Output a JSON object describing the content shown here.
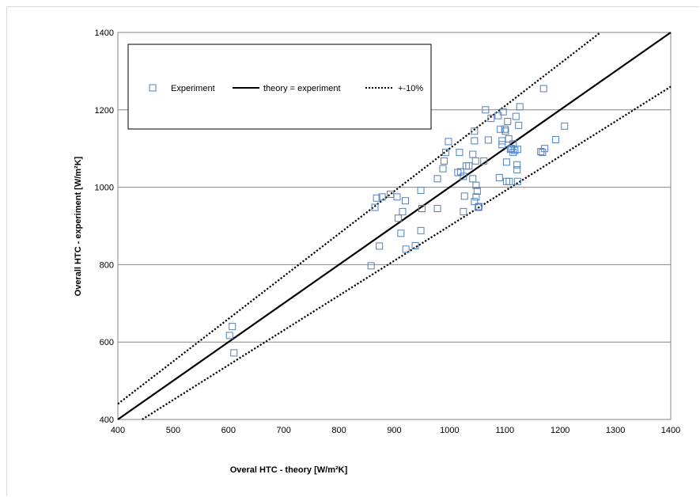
{
  "chart_data": {
    "type": "scatter",
    "title": "",
    "xlabel": "Overal HTC - theory [W/m²K]",
    "ylabel": "Overall HTC - experiment [W/m²K]",
    "xlim": [
      400,
      1400
    ],
    "ylim": [
      400,
      1400
    ],
    "xticks": [
      "400",
      "500",
      "600",
      "700",
      "800",
      "900",
      "1000",
      "1100",
      "1200",
      "1300",
      "1400"
    ],
    "yticks": [
      "400",
      "600",
      "800",
      "1000",
      "1200",
      "1400"
    ],
    "grid": "horizontal",
    "legend_position": "top-left",
    "series": [
      {
        "name": "Experiment",
        "kind": "markers",
        "marker": "open-square",
        "color": "#4f81bd",
        "points": [
          [
            602,
            617
          ],
          [
            607,
            640
          ],
          [
            610,
            572
          ],
          [
            858,
            797
          ],
          [
            865,
            948
          ],
          [
            868,
            972
          ],
          [
            873,
            848
          ],
          [
            878,
            975
          ],
          [
            893,
            982
          ],
          [
            905,
            975
          ],
          [
            907,
            920
          ],
          [
            912,
            881
          ],
          [
            915,
            937
          ],
          [
            920,
            965
          ],
          [
            921,
            840
          ],
          [
            938,
            849
          ],
          [
            948,
            992
          ],
          [
            948,
            888
          ],
          [
            950,
            945
          ],
          [
            978,
            945
          ],
          [
            978,
            1022
          ],
          [
            988,
            1048
          ],
          [
            990,
            1068
          ],
          [
            993,
            1090
          ],
          [
            998,
            1118
          ],
          [
            1015,
            1038
          ],
          [
            1018,
            1090
          ],
          [
            1020,
            1040
          ],
          [
            1025,
            1028
          ],
          [
            1025,
            937
          ],
          [
            1027,
            977
          ],
          [
            1030,
            1055
          ],
          [
            1035,
            1055
          ],
          [
            1042,
            1085
          ],
          [
            1042,
            1022
          ],
          [
            1045,
            1145
          ],
          [
            1045,
            1120
          ],
          [
            1045,
            963
          ],
          [
            1047,
            1068
          ],
          [
            1048,
            1005
          ],
          [
            1048,
            975
          ],
          [
            1050,
            990
          ],
          [
            1052,
            948
          ],
          [
            1053,
            950
          ],
          [
            1062,
            1068
          ],
          [
            1065,
            1200
          ],
          [
            1070,
            1122
          ],
          [
            1075,
            1178
          ],
          [
            1088,
            1185
          ],
          [
            1090,
            1025
          ],
          [
            1092,
            1150
          ],
          [
            1095,
            1120
          ],
          [
            1095,
            1110
          ],
          [
            1097,
            1195
          ],
          [
            1100,
            1150
          ],
          [
            1101,
            1145
          ],
          [
            1103,
            1065
          ],
          [
            1103,
            1015
          ],
          [
            1105,
            1170
          ],
          [
            1107,
            1125
          ],
          [
            1108,
            1015
          ],
          [
            1110,
            1098
          ],
          [
            1112,
            1100
          ],
          [
            1115,
            1112
          ],
          [
            1115,
            1090
          ],
          [
            1118,
            1095
          ],
          [
            1120,
            1183
          ],
          [
            1122,
            1058
          ],
          [
            1122,
            1045
          ],
          [
            1123,
            1098
          ],
          [
            1123,
            1015
          ],
          [
            1125,
            1160
          ],
          [
            1127,
            1208
          ],
          [
            1165,
            1092
          ],
          [
            1168,
            1090
          ],
          [
            1170,
            1255
          ],
          [
            1172,
            1100
          ],
          [
            1192,
            1123
          ],
          [
            1208,
            1158
          ]
        ]
      },
      {
        "name": "theory = experiment",
        "kind": "line",
        "style": "solid",
        "color": "#000000",
        "points": [
          [
            400,
            400
          ],
          [
            1400,
            1400
          ]
        ]
      },
      {
        "name": "+-10%",
        "kind": "line",
        "style": "dotted",
        "color": "#000000",
        "points": [
          [
            400,
            440
          ],
          [
            1273,
            1400
          ]
        ]
      },
      {
        "name": "+-10%",
        "kind": "line",
        "style": "dotted",
        "color": "#000000",
        "points": [
          [
            444,
            400
          ],
          [
            1400,
            1260
          ]
        ]
      }
    ],
    "legend": [
      "Experiment",
      "theory = experiment",
      "+-10%"
    ]
  }
}
